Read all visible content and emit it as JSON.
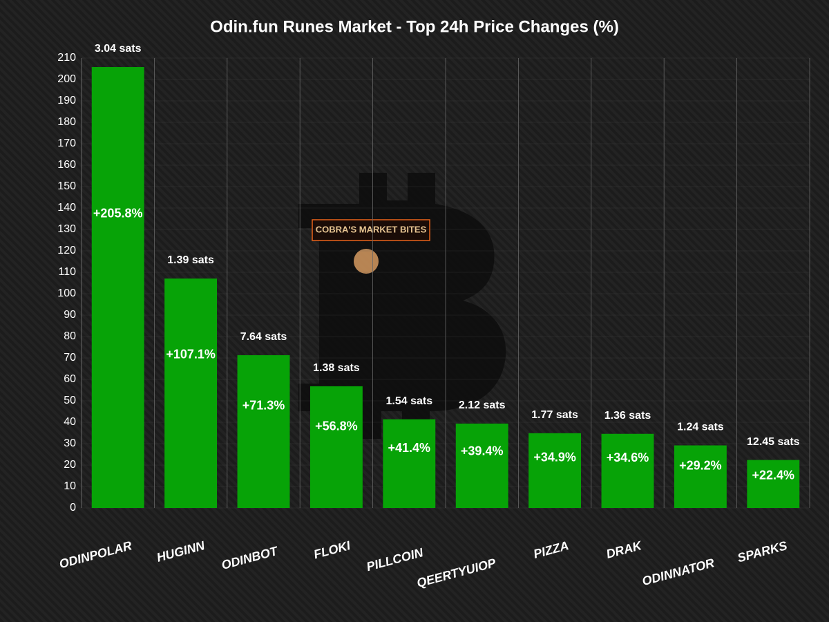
{
  "chart_data": {
    "type": "bar",
    "title": "Odin.fun Runes Market - Top 24h Price Changes (%)",
    "categories": [
      "ODINPOLAR",
      "HUGINN",
      "ODINBOT",
      "FLOKI",
      "PILLCOIN",
      "QEERTYUIOP",
      "PIZZA",
      "DRAK",
      "ODINNATOR",
      "SPARKS"
    ],
    "values": [
      205.8,
      107.1,
      71.3,
      56.8,
      41.4,
      39.4,
      34.9,
      34.6,
      29.2,
      22.4
    ],
    "value_labels": [
      "+205.8%",
      "+107.1%",
      "+71.3%",
      "+56.8%",
      "+41.4%",
      "+39.4%",
      "+34.9%",
      "+34.6%",
      "+29.2%",
      "+22.4%"
    ],
    "price_labels": [
      "3.04 sats",
      "1.39 sats",
      "7.64 sats",
      "1.38 sats",
      "1.54 sats",
      "2.12 sats",
      "1.77 sats",
      "1.36 sats",
      "1.24 sats",
      "12.45 sats"
    ],
    "color": "#07a307",
    "ylim": [
      0,
      210
    ],
    "yticks": [
      0,
      10,
      20,
      30,
      40,
      50,
      60,
      70,
      80,
      90,
      100,
      110,
      120,
      130,
      140,
      150,
      160,
      170,
      180,
      190,
      200,
      210
    ],
    "grid": true,
    "watermark": "COBRA'S MARKET BITES"
  }
}
